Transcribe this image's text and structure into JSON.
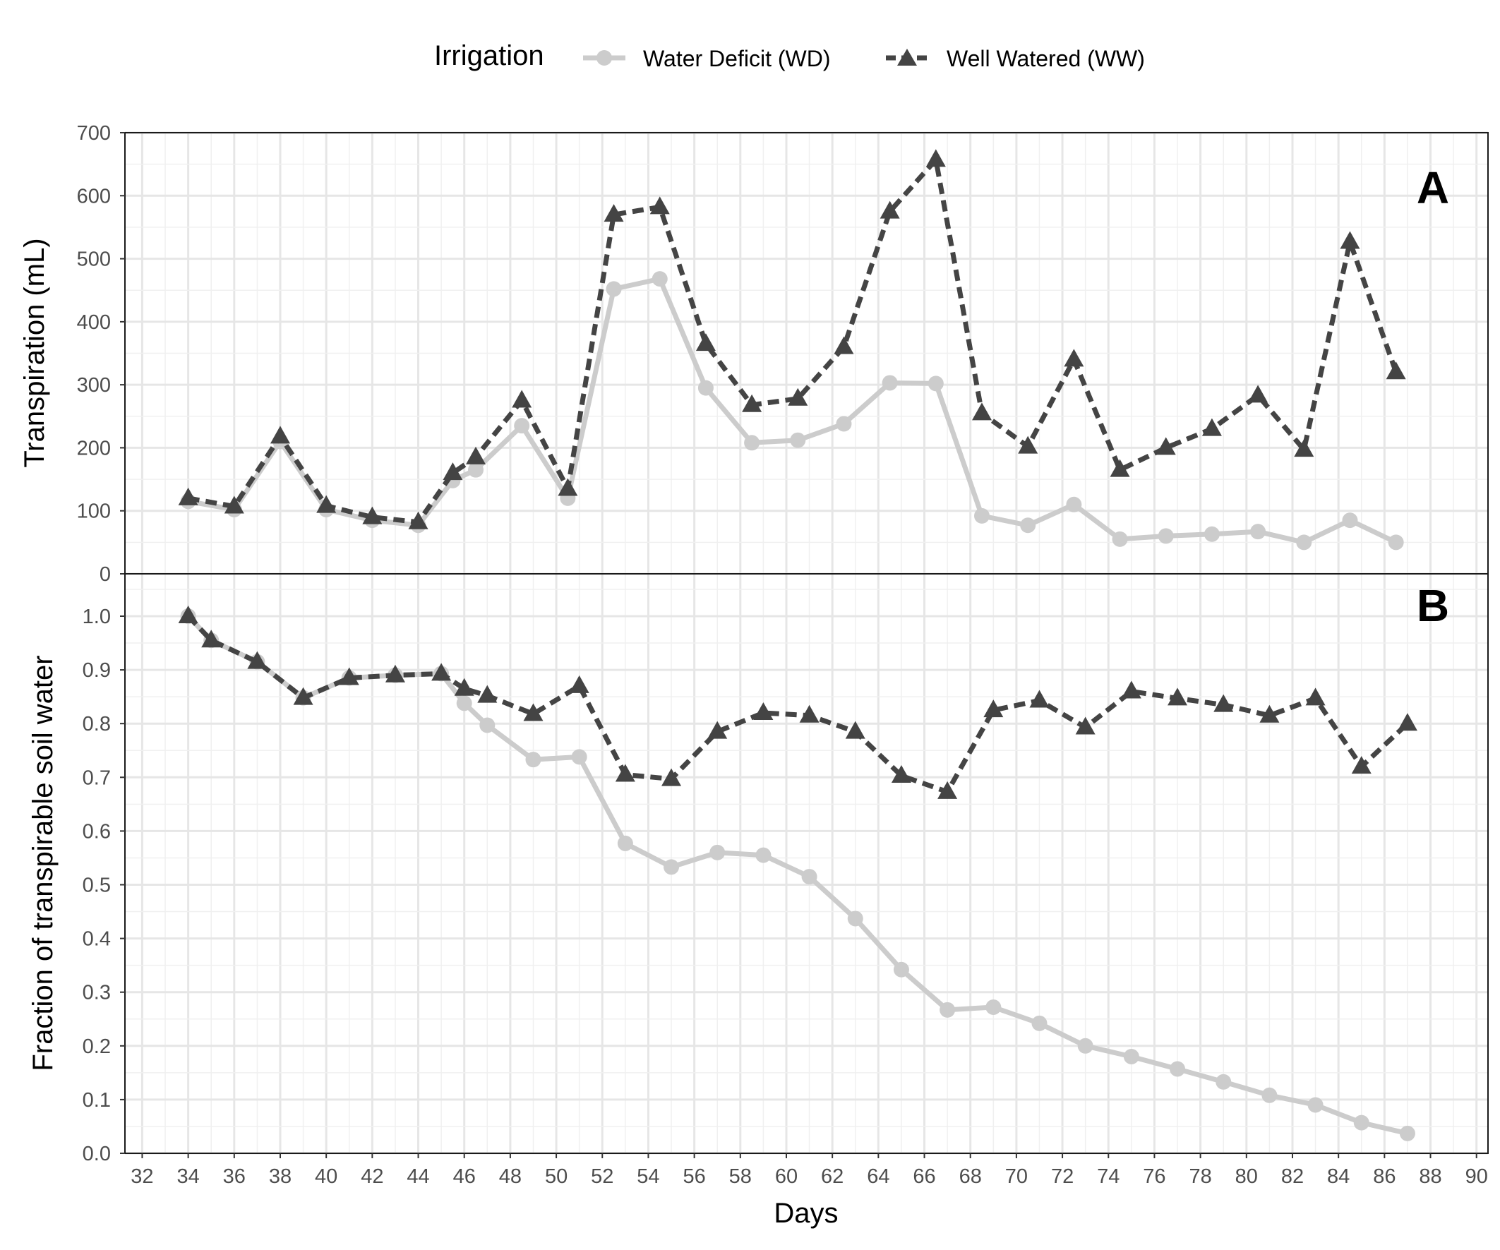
{
  "legend": {
    "title": "Irrigation",
    "items": [
      {
        "label": "Water Deficit (WD)",
        "color": "#cccccc",
        "marker": "circle",
        "line": "solid"
      },
      {
        "label": "Well Watered (WW)",
        "color": "#444444",
        "marker": "triangle",
        "line": "dashed"
      }
    ]
  },
  "x_axis": {
    "label": "Days",
    "ticks": [
      "32",
      "34",
      "36",
      "38",
      "40",
      "42",
      "44",
      "46",
      "48",
      "50",
      "52",
      "54",
      "56",
      "58",
      "60",
      "62",
      "64",
      "66",
      "68",
      "70",
      "72",
      "74",
      "76",
      "78",
      "80",
      "82",
      "84",
      "86",
      "88",
      "90"
    ]
  },
  "chart_data": [
    {
      "type": "line",
      "panel_tag": "A",
      "ylabel": "Transpiration (mL)",
      "xlabel": "",
      "ylim": [
        0,
        700
      ],
      "yticks": [
        "0",
        "100",
        "200",
        "300",
        "400",
        "500",
        "600",
        "700"
      ],
      "grid": true,
      "series": [
        {
          "name": "Water Deficit (WD)",
          "x": [
            34,
            36,
            38,
            40,
            42,
            44,
            45.5,
            46.5,
            48.5,
            50.5,
            52.5,
            54.5,
            56.5,
            58.5,
            60.5,
            62.5,
            64.5,
            66.5,
            68.5,
            70.5,
            72.5,
            74.5,
            76.5,
            78.5,
            80.5,
            82.5,
            84.5,
            86.5
          ],
          "y": [
            115,
            102,
            210,
            102,
            85,
            77,
            148,
            165,
            235,
            120,
            452,
            468,
            295,
            208,
            212,
            238,
            303,
            302,
            92,
            77,
            110,
            55,
            60,
            63,
            67,
            50,
            85,
            50
          ]
        },
        {
          "name": "Well Watered (WW)",
          "x": [
            34,
            36,
            38,
            40,
            42,
            44,
            45.5,
            46.5,
            48.5,
            50.5,
            52.5,
            54.5,
            56.5,
            58.5,
            60.5,
            62.5,
            64.5,
            66.5,
            68.5,
            70.5,
            72.5,
            74.5,
            76.5,
            78.5,
            80.5,
            82.5,
            84.5,
            86.5
          ],
          "y": [
            120,
            107,
            218,
            108,
            90,
            82,
            160,
            185,
            275,
            135,
            570,
            582,
            365,
            268,
            278,
            360,
            575,
            657,
            255,
            202,
            340,
            165,
            200,
            230,
            283,
            197,
            527,
            320
          ]
        }
      ]
    },
    {
      "type": "line",
      "panel_tag": "B",
      "ylabel": "Fraction of transpirable soil water",
      "xlabel": "Days",
      "xlim": [
        31.25,
        90.5
      ],
      "ylim": [
        0,
        1.0
      ],
      "yticks": [
        "0.0",
        "0.1",
        "0.2",
        "0.3",
        "0.4",
        "0.5",
        "0.6",
        "0.7",
        "0.8",
        "0.9",
        "1.0"
      ],
      "grid": true,
      "series": [
        {
          "name": "Water Deficit (WD)",
          "x": [
            34,
            35,
            37,
            39,
            41,
            43,
            45,
            46,
            47,
            49,
            51,
            53,
            55,
            57,
            59,
            61,
            63,
            65,
            67,
            69,
            71,
            73,
            75,
            77,
            79,
            81,
            83,
            85,
            87
          ],
          "y": [
            1.0,
            0.955,
            0.915,
            0.848,
            0.885,
            0.89,
            0.893,
            0.838,
            0.797,
            0.733,
            0.738,
            0.577,
            0.533,
            0.56,
            0.555,
            0.515,
            0.437,
            0.342,
            0.267,
            0.272,
            0.242,
            0.2,
            0.18,
            0.157,
            0.133,
            0.108,
            0.09,
            0.057,
            0.037
          ]
        },
        {
          "name": "Well Watered (WW)",
          "x": [
            34,
            35,
            37,
            39,
            41,
            43,
            45,
            46,
            47,
            49,
            51,
            53,
            55,
            57,
            59,
            61,
            63,
            65,
            67,
            69,
            71,
            73,
            75,
            77,
            79,
            81,
            83,
            85,
            87
          ],
          "y": [
            1.0,
            0.955,
            0.915,
            0.848,
            0.885,
            0.89,
            0.893,
            0.865,
            0.852,
            0.818,
            0.87,
            0.705,
            0.697,
            0.785,
            0.82,
            0.815,
            0.785,
            0.703,
            0.673,
            0.825,
            0.843,
            0.793,
            0.86,
            0.847,
            0.835,
            0.815,
            0.847,
            0.72,
            0.8
          ]
        }
      ]
    }
  ]
}
